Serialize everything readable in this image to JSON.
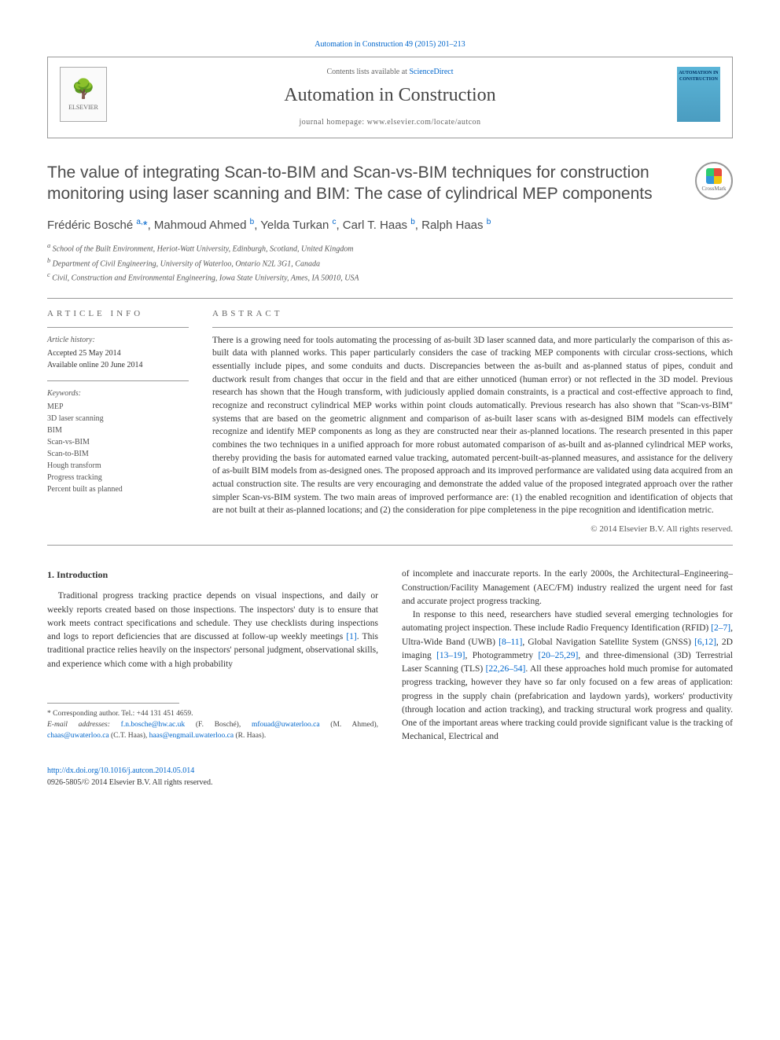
{
  "journal_ref": "Automation in Construction 49 (2015) 201–213",
  "header": {
    "contents_prefix": "Contents lists available at ",
    "contents_link": "ScienceDirect",
    "journal_title": "Automation in Construction",
    "homepage_prefix": "journal homepage: ",
    "homepage": "www.elsevier.com/locate/autcon",
    "elsevier_label": "ELSEVIER",
    "cover_label": "AUTOMATION IN CONSTRUCTION"
  },
  "crossmark_label": "CrossMark",
  "article": {
    "title": "The value of integrating Scan-to-BIM and Scan-vs-BIM techniques for construction monitoring using laser scanning and BIM: The case of cylindrical MEP components",
    "authors_html": "Frédéric Bosché <sup>a,</sup><span class='star'>*</span>, Mahmoud Ahmed <sup>b</sup>, Yelda Turkan <sup>c</sup>, Carl T. Haas <sup>b</sup>, Ralph Haas <sup>b</sup>",
    "affiliations": [
      "a  School of the Built Environment, Heriot-Watt University, Edinburgh, Scotland, United Kingdom",
      "b  Department of Civil Engineering, University of Waterloo, Ontario N2L 3G1, Canada",
      "c  Civil, Construction and Environmental Engineering, Iowa State University, Ames, IA 50010, USA"
    ]
  },
  "article_info": {
    "heading": "ARTICLE INFO",
    "history_label": "Article history:",
    "accepted": "Accepted 25 May 2014",
    "online": "Available online 20 June 2014",
    "keywords_label": "Keywords:",
    "keywords": [
      "MEP",
      "3D laser scanning",
      "BIM",
      "Scan-vs-BIM",
      "Scan-to-BIM",
      "Hough transform",
      "Progress tracking",
      "Percent built as planned"
    ]
  },
  "abstract": {
    "heading": "ABSTRACT",
    "text": "There is a growing need for tools automating the processing of as-built 3D laser scanned data, and more particularly the comparison of this as-built data with planned works. This paper particularly considers the case of tracking MEP components with circular cross-sections, which essentially include pipes, and some conduits and ducts. Discrepancies between the as-built and as-planned status of pipes, conduit and ductwork result from changes that occur in the field and that are either unnoticed (human error) or not reflected in the 3D model. Previous research has shown that the Hough transform, with judiciously applied domain constraints, is a practical and cost-effective approach to find, recognize and reconstruct cylindrical MEP works within point clouds automatically. Previous research has also shown that \"Scan-vs-BIM\" systems that are based on the geometric alignment and comparison of as-built laser scans with as-designed BIM models can effectively recognize and identify MEP components as long as they are constructed near their as-planned locations. The research presented in this paper combines the two techniques in a unified approach for more robust automated comparison of as-built and as-planned cylindrical MEP works, thereby providing the basis for automated earned value tracking, automated percent-built-as-planned measures, and assistance for the delivery of as-built BIM models from as-designed ones. The proposed approach and its improved performance are validated using data acquired from an actual construction site. The results are very encouraging and demonstrate the added value of the proposed integrated approach over the rather simpler Scan-vs-BIM system. The two main areas of improved performance are: (1) the enabled recognition and identification of objects that are not built at their as-planned locations; and (2) the consideration for pipe completeness in the pipe recognition and identification metric.",
    "copyright": "© 2014 Elsevier B.V. All rights reserved."
  },
  "body": {
    "section_heading": "1. Introduction",
    "left_p1": "Traditional progress tracking practice depends on visual inspections, and daily or weekly reports created based on those inspections. The inspectors' duty is to ensure that work meets contract specifications and schedule. They use checklists during inspections and logs to report deficiencies that are discussed at follow-up weekly meetings ",
    "left_ref1": "[1]",
    "left_p1b": ". This traditional practice relies heavily on the inspectors' personal judgment, observational skills, and experience which come with a high probability",
    "right_p1": "of incomplete and inaccurate reports. In the early 2000s, the Architectural–Engineering–Construction/Facility Management (AEC/FM) industry realized the urgent need for fast and accurate project progress tracking.",
    "right_p2a": "In response to this need, researchers have studied several emerging technologies for automating project inspection. These include Radio Frequency Identification (RFID) ",
    "right_ref_2_7": "[2–7]",
    "right_p2b": ", Ultra-Wide Band (UWB) ",
    "right_ref_8_11": "[8–11]",
    "right_p2c": ", Global Navigation Satellite System (GNSS) ",
    "right_ref_6_12": "[6,12]",
    "right_p2d": ", 2D imaging ",
    "right_ref_13_19": "[13–19]",
    "right_p2e": ", Photogrammetry ",
    "right_ref_20_25_29": "[20–25,29]",
    "right_p2f": ", and three-dimensional (3D) Terrestrial Laser Scanning (TLS) ",
    "right_ref_22_26_54": "[22,26–54]",
    "right_p2g": ". All these approaches hold much promise for automated progress tracking, however they have so far only focused on a few areas of application: progress in the supply chain (prefabrication and laydown yards), workers' productivity (through location and action tracking), and tracking structural work progress and quality. One of the important areas where tracking could provide significant value is the tracking of Mechanical, Electrical and"
  },
  "footnotes": {
    "corr_label": "* Corresponding author. Tel.: +44 131 451 4659.",
    "email_label": "E-mail addresses: ",
    "emails": [
      {
        "addr": "f.n.bosche@hw.ac.uk",
        "who": " (F. Bosché), "
      },
      {
        "addr": "mfouad@uwaterloo.ca",
        "who": " (M. Ahmed), "
      },
      {
        "addr": "chaas@uwaterloo.ca",
        "who": " (C.T. Haas), "
      },
      {
        "addr": "haas@engmail.uwaterloo.ca",
        "who": " (R. Haas)."
      }
    ]
  },
  "footer": {
    "doi": "http://dx.doi.org/10.1016/j.autcon.2014.05.014",
    "issn": "0926-5805/© 2014 Elsevier B.V. All rights reserved."
  },
  "colors": {
    "link": "#0066cc",
    "text": "#333333",
    "muted": "#666666",
    "rule": "#999999"
  }
}
